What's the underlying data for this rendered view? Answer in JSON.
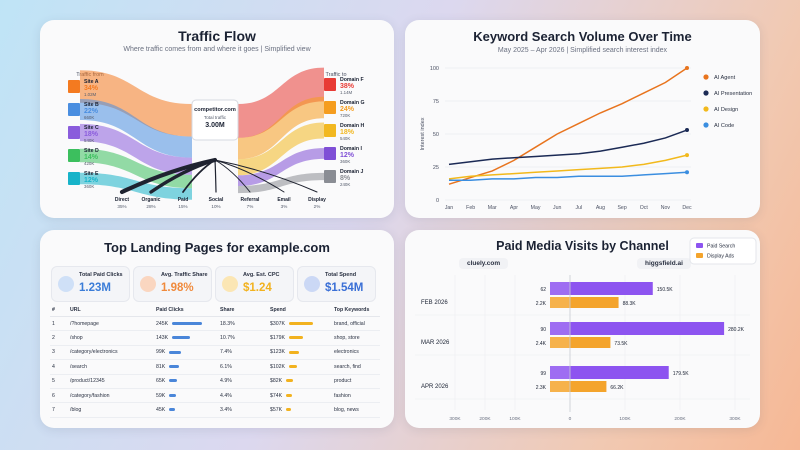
{
  "colors": {
    "traffic_sources": [
      "#f47a20",
      "#4a8ee0",
      "#8a5cdc",
      "#3cbf5e",
      "#17b3c9"
    ],
    "traffic_destinations": [
      "#e83b35",
      "#f59d1f",
      "#f2b821",
      "#7f4fd6",
      "#8a8d94"
    ],
    "kw_series": [
      "#e8741e",
      "#1b2a55",
      "#f2b91c",
      "#3b8ee0"
    ],
    "kpi": [
      "#3b7dd8",
      "#f08a3c",
      "#f2b21f",
      "#3a6fd6"
    ],
    "paid_search": "#8d54f0",
    "display_ads": "#f4a42c"
  },
  "chart_data": [
    {
      "type": "sankey",
      "title": "Traffic Flow",
      "subtitle": "Where traffic comes from and where it goes | Simplified view",
      "left_header": "Traffic from",
      "right_header": "Traffic to",
      "center": {
        "name": "competitor.com",
        "label": "Total traffic",
        "value": "3.00M"
      },
      "sources": [
        {
          "name": "Site A",
          "pct": "34%",
          "value": "1.02M",
          "share": 0.34
        },
        {
          "name": "Site B",
          "pct": "22%",
          "value": "660K",
          "share": 0.22
        },
        {
          "name": "Site C",
          "pct": "18%",
          "value": "540K",
          "share": 0.18
        },
        {
          "name": "Site D",
          "pct": "14%",
          "value": "420K",
          "share": 0.14
        },
        {
          "name": "Site E",
          "pct": "12%",
          "value": "360K",
          "share": 0.12
        }
      ],
      "destinations": [
        {
          "name": "Domain F",
          "pct": "38%",
          "value": "1.14M",
          "share": 0.38
        },
        {
          "name": "Domain G",
          "pct": "24%",
          "value": "720K",
          "share": 0.24
        },
        {
          "name": "Domain H",
          "pct": "18%",
          "value": "540K",
          "share": 0.18
        },
        {
          "name": "Domain I",
          "pct": "12%",
          "value": "360K",
          "share": 0.12
        },
        {
          "name": "Domain J",
          "pct": "8%",
          "value": "240K",
          "share": 0.08
        }
      ],
      "channels": [
        {
          "name": "Direct",
          "pct": "35%",
          "share": 0.35
        },
        {
          "name": "Organic",
          "pct": "28%",
          "share": 0.28
        },
        {
          "name": "Paid",
          "pct": "15%",
          "share": 0.15
        },
        {
          "name": "Social",
          "pct": "10%",
          "share": 0.1
        },
        {
          "name": "Referral",
          "pct": "7%",
          "share": 0.07
        },
        {
          "name": "Email",
          "pct": "3%",
          "share": 0.03
        },
        {
          "name": "Display",
          "pct": "2%",
          "share": 0.02
        }
      ]
    },
    {
      "type": "line",
      "title": "Keyword Search Volume Over Time",
      "subtitle": "May 2025 – Apr 2026 | Simplified search interest index",
      "ylabel": "Interest index",
      "ylim": [
        0,
        100
      ],
      "yticks": [
        0,
        25,
        50,
        75,
        100
      ],
      "x": [
        "Jan",
        "Feb",
        "Mar",
        "Apr",
        "May",
        "Jun",
        "Jul",
        "Aug",
        "Sep",
        "Oct",
        "Nov",
        "Dec"
      ],
      "series": [
        {
          "name": "AI Agent",
          "values": [
            12,
            17,
            22,
            30,
            40,
            50,
            58,
            66,
            73,
            81,
            89,
            100
          ]
        },
        {
          "name": "AI Presentation",
          "values": [
            27,
            29,
            31,
            32,
            33,
            34,
            35,
            37,
            40,
            43,
            47,
            53
          ]
        },
        {
          "name": "AI Design",
          "values": [
            16,
            18,
            19,
            20,
            21,
            22,
            23,
            24,
            25,
            27,
            30,
            34
          ]
        },
        {
          "name": "AI Code",
          "values": [
            15,
            15,
            16,
            16,
            17,
            17,
            18,
            18,
            18,
            19,
            20,
            21
          ]
        }
      ],
      "legend": "right",
      "grid": true
    },
    {
      "type": "table",
      "title": "Top Landing Pages for example.com",
      "kpis": [
        {
          "label": "Total Paid Clicks",
          "value": "1.23M"
        },
        {
          "label": "Avg. Traffic Share",
          "value": "1.98%"
        },
        {
          "label": "Avg. Est. CPC",
          "value": "$1.24"
        },
        {
          "label": "Total Spend",
          "value": "$1.54M"
        }
      ],
      "columns": [
        "#",
        "URL",
        "Paid Clicks",
        "Share",
        "Spend",
        "Top Keywords"
      ],
      "rows": [
        {
          "n": "1",
          "url": "/?homepage",
          "clicks": "245K",
          "clicks_v": 245,
          "share": "18.3%",
          "spend": "$307K",
          "spend_v": 307,
          "kw": "brand, official"
        },
        {
          "n": "2",
          "url": "/shop",
          "clicks": "143K",
          "clicks_v": 143,
          "share": "10.7%",
          "spend": "$179K",
          "spend_v": 179,
          "kw": "shop, store"
        },
        {
          "n": "3",
          "url": "/category/electronics",
          "clicks": "99K",
          "clicks_v": 99,
          "share": "7.4%",
          "spend": "$123K",
          "spend_v": 123,
          "kw": "electronics"
        },
        {
          "n": "4",
          "url": "/search",
          "clicks": "81K",
          "clicks_v": 81,
          "share": "6.1%",
          "spend": "$102K",
          "spend_v": 102,
          "kw": "search, find"
        },
        {
          "n": "5",
          "url": "/product/12345",
          "clicks": "65K",
          "clicks_v": 65,
          "share": "4.9%",
          "spend": "$82K",
          "spend_v": 82,
          "kw": "product"
        },
        {
          "n": "6",
          "url": "/category/fashion",
          "clicks": "59K",
          "clicks_v": 59,
          "share": "4.4%",
          "spend": "$74K",
          "spend_v": 74,
          "kw": "fashion"
        },
        {
          "n": "7",
          "url": "/blog",
          "clicks": "45K",
          "clicks_v": 45,
          "share": "3.4%",
          "spend": "$57K",
          "spend_v": 57,
          "kw": "blog, news"
        }
      ]
    },
    {
      "type": "bar",
      "orientation": "horizontal-diverging",
      "title": "Paid Media Visits by Channel",
      "left_site": "cluely.com",
      "right_site": "higgsfield.ai",
      "legend_items": [
        "Paid Search",
        "Display Ads"
      ],
      "categories": [
        "FEB 2026",
        "MAR 2026",
        "APR 2026"
      ],
      "series": [
        {
          "name": "Paid Search",
          "left": [
            62,
            90,
            99
          ],
          "right": [
            150500,
            280200,
            179500
          ],
          "left_labels": [
            "62",
            "90",
            "99"
          ],
          "right_labels": [
            "150.5K",
            "280.2K",
            "179.5K"
          ]
        },
        {
          "name": "Display Ads",
          "left": [
            2200,
            2400,
            2300
          ],
          "right": [
            88300,
            73500,
            66200
          ],
          "left_labels": [
            "2.2K",
            "2.4K",
            "2.3K"
          ],
          "right_labels": [
            "88.3K",
            "73.5K",
            "66.2K"
          ]
        }
      ],
      "x_ticks": [
        "300K",
        "200K",
        "100K",
        "0",
        "100K",
        "200K",
        "300K"
      ]
    }
  ]
}
